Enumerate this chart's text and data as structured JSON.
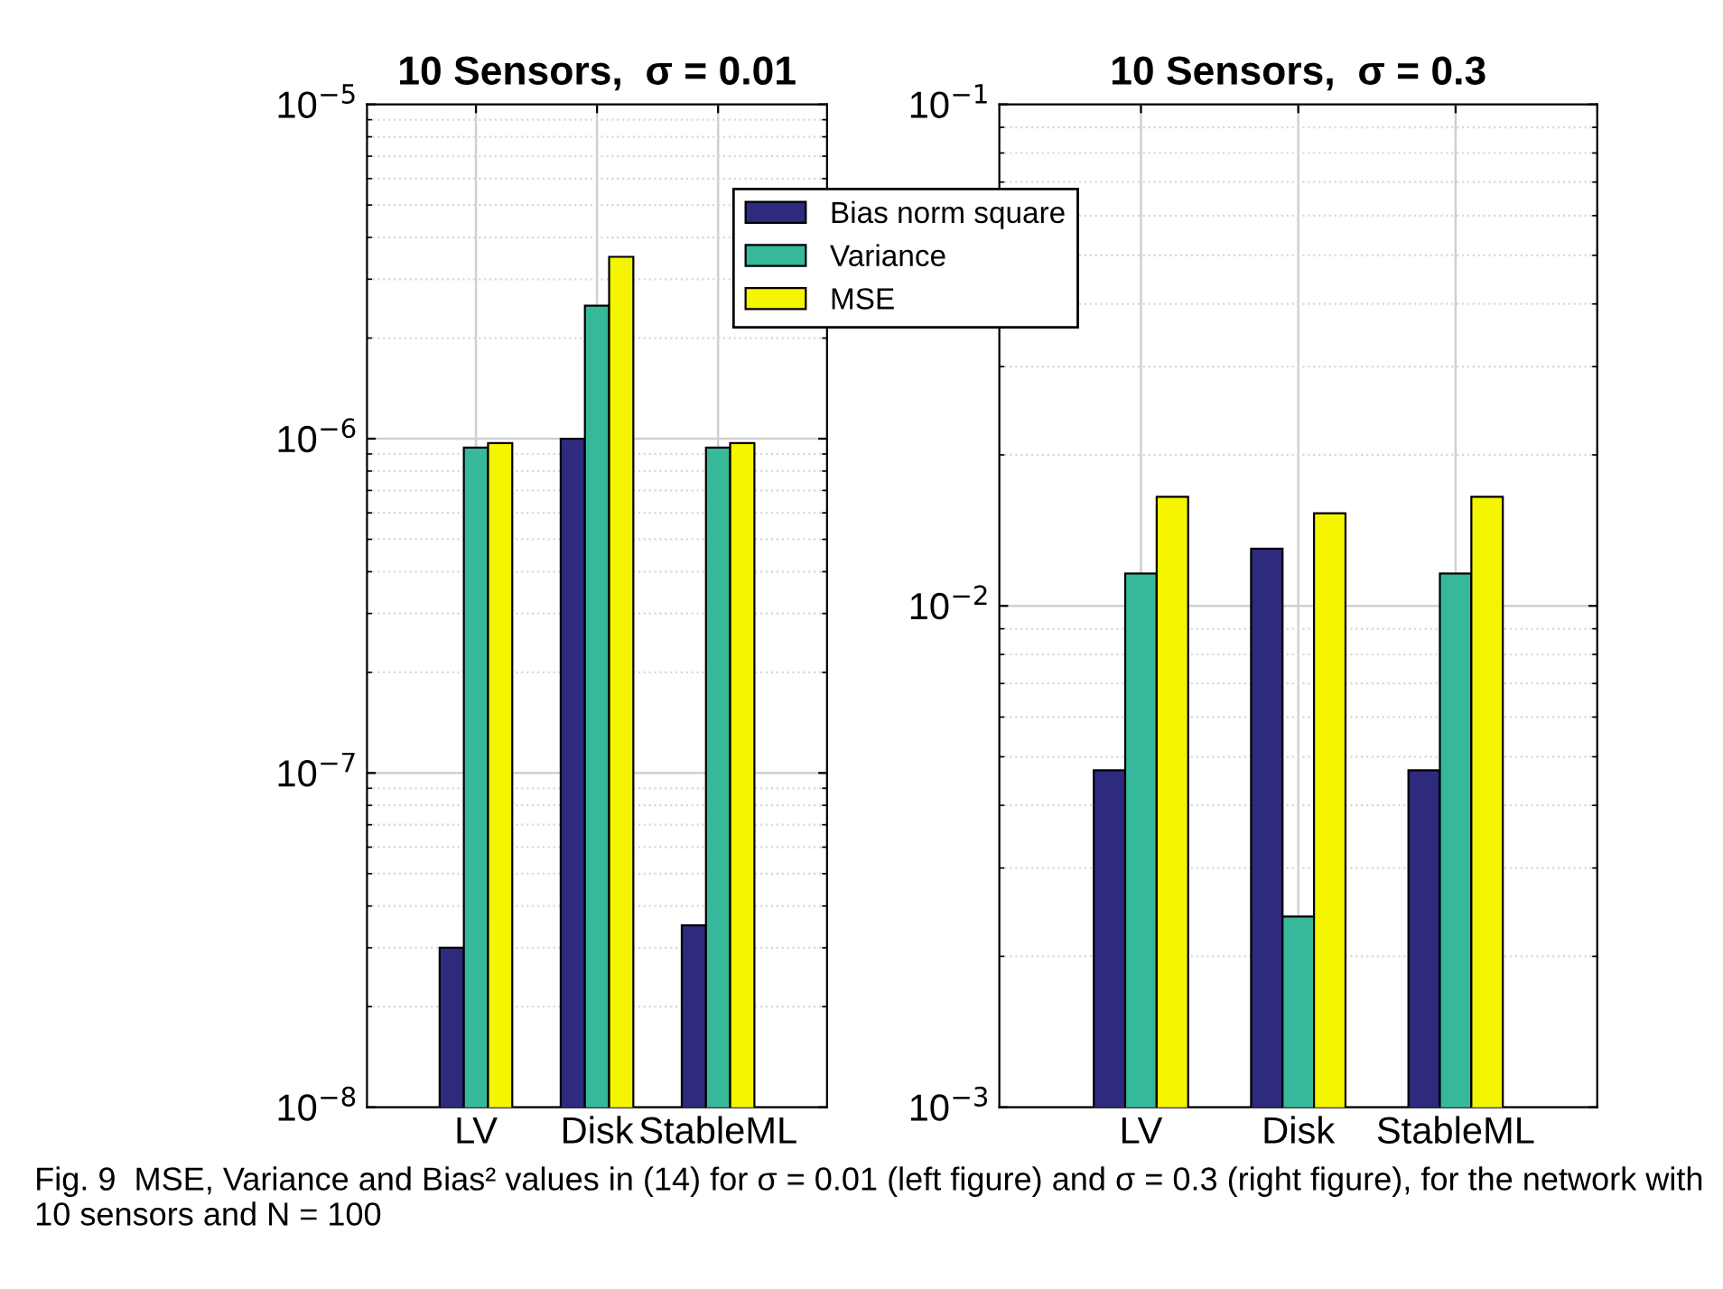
{
  "chart_data": [
    {
      "type": "bar",
      "title": "10 Sensors,  σ = 0.01",
      "categories": [
        "LV",
        "Disk",
        "StableML"
      ],
      "log": "y",
      "grid": true,
      "legend": "top right",
      "ylim": [
        1e-08,
        1e-05
      ],
      "yticks": [
        {
          "value": 1e-08,
          "label": "10$^{−8}$"
        },
        {
          "value": 1e-07,
          "label": "10$^{−7}$"
        },
        {
          "value": 1e-06,
          "label": "10$^{−6}$"
        },
        {
          "value": 1e-05,
          "label": "10$^{−5}$"
        }
      ],
      "series": [
        {
          "name": "Bias norm square",
          "color": "#2e2a7e",
          "values": [
            3e-08,
            1e-06,
            3.5e-08
          ]
        },
        {
          "name": "Variance",
          "color": "#35b99a",
          "values": [
            9.4e-07,
            2.5e-06,
            9.4e-07
          ]
        },
        {
          "name": "MSE",
          "color": "#f5f500",
          "values": [
            9.7e-07,
            3.5e-06,
            9.7e-07
          ]
        }
      ],
      "annotations": [
        "Fig. 9  MSE, Variance and Bias² values in (14) for σ = 0.01 (left figure) and σ = 0.3 (right figure), for the network with 10 sensors and N = 100"
      ]
    },
    {
      "type": "bar",
      "title": "10 Sensors,  σ = 0.3",
      "categories": [
        "LV",
        "Disk",
        "StableML"
      ],
      "log": "y",
      "grid": true,
      "ylim": [
        0.001,
        0.1
      ],
      "yticks": [
        {
          "value": 0.001,
          "label": "10$^{−3}$"
        },
        {
          "value": 0.01,
          "label": "10$^{−2}$"
        },
        {
          "value": 0.1,
          "label": "10$^{−1}$"
        }
      ],
      "series": [
        {
          "color": "#2e2a7e",
          "values": [
            0.0047,
            0.013,
            0.0047
          ]
        },
        {
          "color": "#35b99a",
          "values": [
            0.0116,
            0.0024,
            0.0116
          ]
        },
        {
          "color": "#f5f500",
          "values": [
            0.0165,
            0.0153,
            0.0165
          ]
        }
      ]
    }
  ]
}
